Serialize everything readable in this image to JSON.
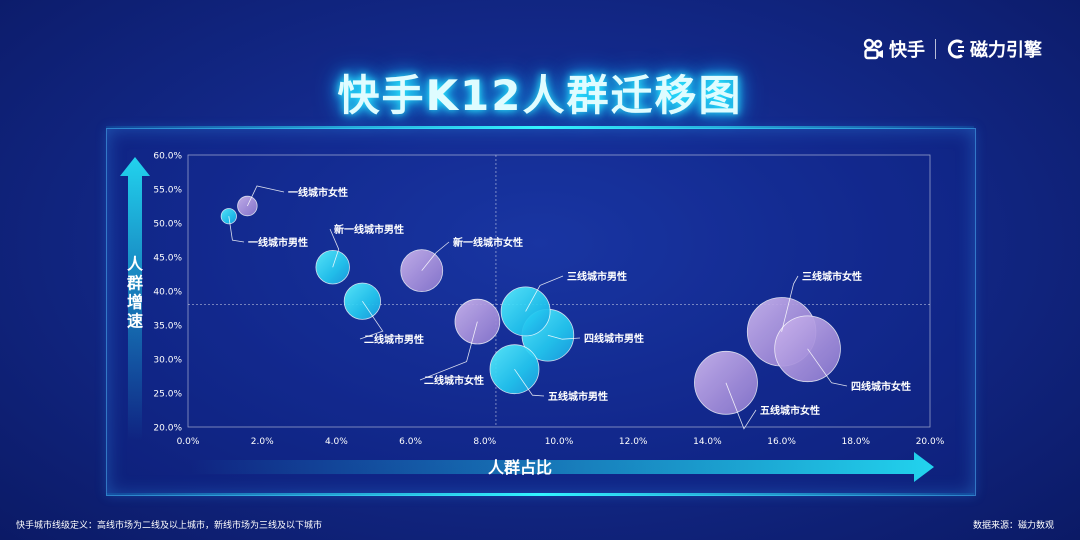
{
  "brand": {
    "kuaishou": "快手",
    "engine": "磁力引擎"
  },
  "title": "快手K12人群迁移图",
  "footnote": {
    "left": "快手城市线级定义：高线市场为二线及以上城市，新线市场为三线及以下城市",
    "right": "数据来源：磁力数观"
  },
  "colors": {
    "cyan": "#2fd8ff",
    "purple": "#b79be0",
    "axis_arrow": "#19c8e6"
  },
  "chart_data": {
    "type": "scatter",
    "title": "快手K12人群迁移图",
    "xlabel": "人群占比",
    "ylabel": "人群增速",
    "xlim": [
      0,
      20
    ],
    "ylim": [
      20,
      60
    ],
    "xticks": [
      "0.0%",
      "2.0%",
      "4.0%",
      "6.0%",
      "8.0%",
      "10.0%",
      "12.0%",
      "14.0%",
      "16.0%",
      "18.0%",
      "20.0%"
    ],
    "yticks": [
      "20.0%",
      "25.0%",
      "30.0%",
      "35.0%",
      "40.0%",
      "45.0%",
      "50.0%",
      "55.0%",
      "60.0%"
    ],
    "reference_lines": {
      "x": 8.3,
      "y": 38
    },
    "points": [
      {
        "label": "一线城市女性",
        "x": 1.6,
        "y": 52.5,
        "size": 1.4,
        "gender": "female"
      },
      {
        "label": "一线城市男性",
        "x": 1.1,
        "y": 51.0,
        "size": 1.1,
        "gender": "male"
      },
      {
        "label": "新一线城市男性",
        "x": 3.9,
        "y": 43.5,
        "size": 2.4,
        "gender": "male"
      },
      {
        "label": "新一线城市女性",
        "x": 6.3,
        "y": 43.0,
        "size": 3.0,
        "gender": "female"
      },
      {
        "label": "二线城市男性",
        "x": 4.7,
        "y": 38.5,
        "size": 2.6,
        "gender": "male"
      },
      {
        "label": "二线城市女性",
        "x": 7.8,
        "y": 35.5,
        "size": 3.2,
        "gender": "female"
      },
      {
        "label": "三线城市男性",
        "x": 9.1,
        "y": 37.0,
        "size": 3.5,
        "gender": "male"
      },
      {
        "label": "四线城市男性",
        "x": 9.7,
        "y": 33.5,
        "size": 3.7,
        "gender": "male"
      },
      {
        "label": "五线城市男性",
        "x": 8.8,
        "y": 28.5,
        "size": 3.5,
        "gender": "male"
      },
      {
        "label": "三线城市女性",
        "x": 16.0,
        "y": 34.0,
        "size": 4.9,
        "gender": "female"
      },
      {
        "label": "四线城市女性",
        "x": 16.7,
        "y": 31.5,
        "size": 4.7,
        "gender": "female"
      },
      {
        "label": "五线城市女性",
        "x": 14.5,
        "y": 26.5,
        "size": 4.5,
        "gender": "female"
      }
    ]
  }
}
